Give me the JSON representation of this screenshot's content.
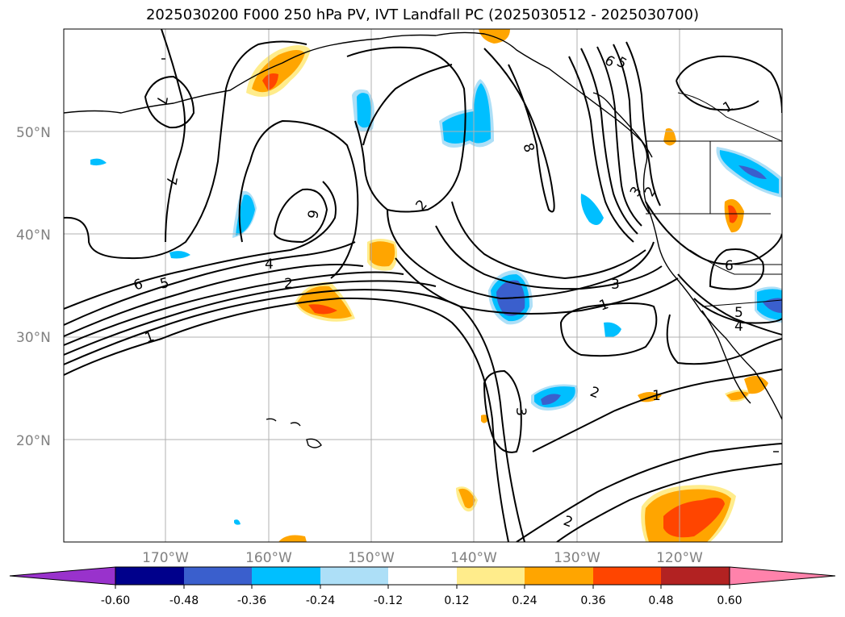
{
  "title": "2025030200 F000 250 hPa PV, IVT Landfall PC (2025030512 - 2025030700)",
  "lat_labels": [
    "50°N",
    "40°N",
    "30°N",
    "20°N"
  ],
  "lon_labels": [
    "170°W",
    "160°W",
    "150°W",
    "140°W",
    "130°W",
    "120°W"
  ],
  "colorbar": {
    "colors": [
      "#9932CC",
      "#00008B",
      "#3A5FCD",
      "#00BFFF",
      "#ADDFF7",
      "#FFFFFF",
      "#FFEC8B",
      "#FFA500",
      "#FF4500",
      "#B22222",
      "#FF82AB"
    ],
    "ticks": [
      "-0.60",
      "-0.48",
      "-0.36",
      "-0.24",
      "-0.12",
      "0.12",
      "0.24",
      "0.36",
      "0.48",
      "0.60"
    ]
  },
  "contour_labels": [
    "1",
    "2",
    "3",
    "4",
    "5",
    "6",
    "7",
    "8",
    "9"
  ]
}
